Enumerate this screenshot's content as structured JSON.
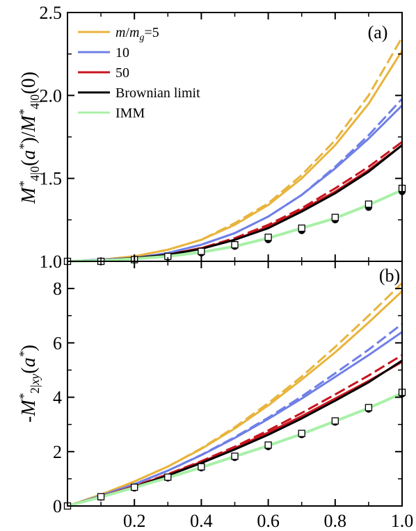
{
  "chart_data": [
    {
      "type": "line",
      "panel_label": "(a)",
      "ylabel_math": "M*4|0(a*)/M*4|0(0)",
      "ylim": [
        1.0,
        2.5
      ],
      "yticks": [
        1.0,
        1.5,
        2.0,
        2.5
      ],
      "ytick_labels": [
        "1.0",
        "1.5",
        "2.0",
        "2.5"
      ],
      "xlim": [
        0,
        1.0
      ],
      "legend": {
        "placement": "top-left",
        "entries": [
          {
            "label": "m/m_g=5",
            "color": "#E8B43C"
          },
          {
            "label": "10",
            "color": "#6F7FE6"
          },
          {
            "label": "50",
            "color": "#C8141E"
          },
          {
            "label": "Brownian limit",
            "color": "#000000"
          },
          {
            "label": "IMM",
            "color": "#A8F0A8"
          }
        ]
      },
      "x": [
        0,
        0.1,
        0.2,
        0.3,
        0.4,
        0.5,
        0.6,
        0.7,
        0.8,
        0.9,
        1.0
      ],
      "series": [
        {
          "name": "m/m_g=5",
          "style": "solid",
          "color": "#E8B43C",
          "values": [
            1.0,
            1.01,
            1.03,
            1.07,
            1.13,
            1.22,
            1.34,
            1.5,
            1.7,
            1.95,
            2.27
          ]
        },
        {
          "name": "m/m_g=5",
          "style": "dashed",
          "color": "#E8B43C",
          "values": [
            1.0,
            1.01,
            1.03,
            1.07,
            1.13,
            1.23,
            1.35,
            1.52,
            1.73,
            2.0,
            2.35
          ]
        },
        {
          "name": "10",
          "style": "solid",
          "color": "#6F7FE6",
          "values": [
            1.0,
            1.01,
            1.02,
            1.05,
            1.1,
            1.17,
            1.27,
            1.4,
            1.56,
            1.74,
            1.94
          ]
        },
        {
          "name": "10",
          "style": "dashed",
          "color": "#6F7FE6",
          "values": [
            1.0,
            1.01,
            1.02,
            1.05,
            1.1,
            1.17,
            1.27,
            1.4,
            1.57,
            1.76,
            1.98
          ]
        },
        {
          "name": "50",
          "style": "solid",
          "color": "#C8141E",
          "values": [
            1.0,
            1.005,
            1.02,
            1.04,
            1.08,
            1.13,
            1.21,
            1.31,
            1.42,
            1.55,
            1.7
          ]
        },
        {
          "name": "50",
          "style": "dashed",
          "color": "#C8141E",
          "values": [
            1.0,
            1.005,
            1.02,
            1.04,
            1.08,
            1.14,
            1.22,
            1.32,
            1.44,
            1.57,
            1.72
          ]
        },
        {
          "name": "Brownian limit",
          "style": "solid",
          "color": "#000000",
          "values": [
            1.0,
            1.005,
            1.02,
            1.04,
            1.075,
            1.13,
            1.2,
            1.3,
            1.41,
            1.54,
            1.7
          ]
        },
        {
          "name": "IMM",
          "style": "solid",
          "color": "#A8F0A8",
          "values": [
            1.0,
            1.004,
            1.015,
            1.03,
            1.055,
            1.09,
            1.14,
            1.2,
            1.26,
            1.34,
            1.43
          ]
        }
      ],
      "markers_filled_circle": [
        [
          0,
          1.0
        ],
        [
          0.1,
          1.0
        ],
        [
          0.2,
          1.01
        ],
        [
          0.3,
          1.025
        ],
        [
          0.4,
          1.05
        ],
        [
          0.5,
          1.09
        ],
        [
          0.6,
          1.13
        ],
        [
          0.7,
          1.185
        ],
        [
          0.8,
          1.25
        ],
        [
          0.9,
          1.325
        ],
        [
          1.0,
          1.42
        ]
      ],
      "markers_open_square": [
        [
          0,
          1.0
        ],
        [
          0.1,
          1.0
        ],
        [
          0.2,
          1.01
        ],
        [
          0.3,
          1.03
        ],
        [
          0.4,
          1.06
        ],
        [
          0.5,
          1.1
        ],
        [
          0.6,
          1.145
        ],
        [
          0.7,
          1.2
        ],
        [
          0.8,
          1.265
        ],
        [
          0.9,
          1.345
        ],
        [
          1.0,
          1.44
        ]
      ]
    },
    {
      "type": "line",
      "panel_label": "(b)",
      "ylabel_math": "-M*2|xy(a*)",
      "ylim": [
        0,
        9
      ],
      "yticks": [
        0,
        2,
        4,
        6,
        8
      ],
      "ytick_labels": [
        "0",
        "2",
        "4",
        "6",
        "8"
      ],
      "xlim": [
        0,
        1.0
      ],
      "xticks": [
        0.2,
        0.4,
        0.6,
        0.8,
        1.0
      ],
      "xtick_labels": [
        "0.2",
        "0.4",
        "0.6",
        "0.8",
        "1.0"
      ],
      "x": [
        0,
        0.1,
        0.2,
        0.3,
        0.4,
        0.5,
        0.6,
        0.7,
        0.8,
        0.9,
        1.0
      ],
      "series": [
        {
          "name": "m/m_g=5",
          "style": "solid",
          "color": "#E8B43C",
          "values": [
            0,
            0.42,
            0.9,
            1.45,
            2.1,
            2.85,
            3.7,
            4.65,
            5.65,
            6.75,
            7.9
          ]
        },
        {
          "name": "m/m_g=5",
          "style": "dashed",
          "color": "#E8B43C",
          "values": [
            0,
            0.42,
            0.9,
            1.45,
            2.12,
            2.9,
            3.78,
            4.76,
            5.85,
            7.0,
            8.2
          ]
        },
        {
          "name": "10",
          "style": "solid",
          "color": "#6F7FE6",
          "values": [
            0,
            0.38,
            0.8,
            1.3,
            1.87,
            2.5,
            3.2,
            3.95,
            4.75,
            5.55,
            6.4
          ]
        },
        {
          "name": "10",
          "style": "dashed",
          "color": "#6F7FE6",
          "values": [
            0,
            0.38,
            0.8,
            1.3,
            1.88,
            2.53,
            3.25,
            4.03,
            4.88,
            5.75,
            6.7
          ]
        },
        {
          "name": "50",
          "style": "solid",
          "color": "#C8141E",
          "values": [
            0,
            0.35,
            0.72,
            1.15,
            1.62,
            2.13,
            2.7,
            3.3,
            3.95,
            4.6,
            5.3
          ]
        },
        {
          "name": "50",
          "style": "dashed",
          "color": "#C8141E",
          "values": [
            0,
            0.35,
            0.73,
            1.17,
            1.65,
            2.18,
            2.78,
            3.42,
            4.1,
            4.8,
            5.55
          ]
        },
        {
          "name": "Brownian limit",
          "style": "solid",
          "color": "#000000",
          "values": [
            0,
            0.34,
            0.7,
            1.12,
            1.58,
            2.08,
            2.62,
            3.22,
            3.87,
            4.55,
            5.35
          ]
        },
        {
          "name": "IMM",
          "style": "solid",
          "color": "#A8F0A8",
          "values": [
            0,
            0.33,
            0.68,
            1.04,
            1.42,
            1.82,
            2.22,
            2.65,
            3.12,
            3.6,
            4.15
          ]
        }
      ],
      "markers_filled_circle": [
        [
          0,
          0
        ],
        [
          0.1,
          0.32
        ],
        [
          0.2,
          0.66
        ],
        [
          0.3,
          1.03
        ],
        [
          0.4,
          1.4
        ],
        [
          0.5,
          1.78
        ],
        [
          0.6,
          2.18
        ],
        [
          0.7,
          2.62
        ],
        [
          0.8,
          3.08
        ],
        [
          0.9,
          3.56
        ],
        [
          1.0,
          4.12
        ]
      ],
      "markers_open_square": [
        [
          0,
          0
        ],
        [
          0.1,
          0.34
        ],
        [
          0.2,
          0.69
        ],
        [
          0.3,
          1.06
        ],
        [
          0.4,
          1.44
        ],
        [
          0.5,
          1.83
        ],
        [
          0.6,
          2.24
        ],
        [
          0.7,
          2.67
        ],
        [
          0.8,
          3.13
        ],
        [
          0.9,
          3.62
        ],
        [
          1.0,
          4.18
        ]
      ]
    }
  ]
}
